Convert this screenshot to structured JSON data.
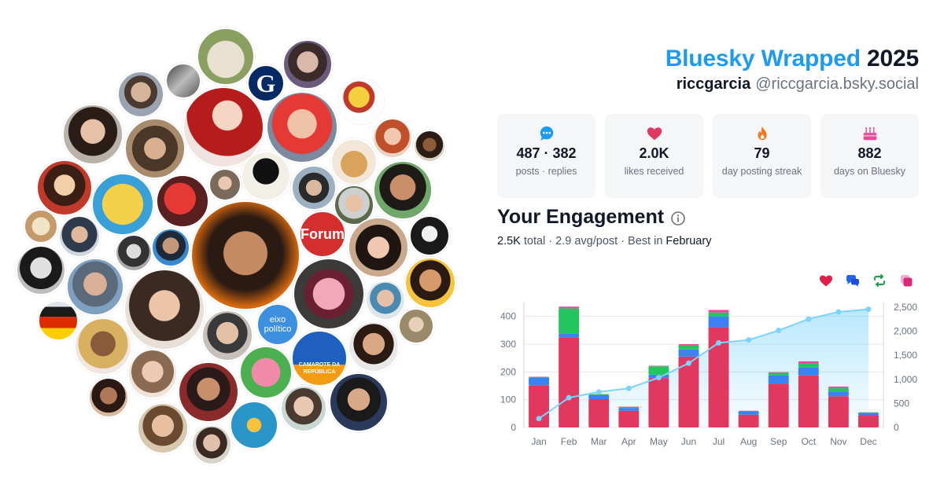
{
  "header": {
    "brand": "Bluesky Wrapped",
    "year": "2025",
    "username": "riccgarcia",
    "handle": "@riccgarcia.bsky.social"
  },
  "stats": [
    {
      "icon": "chat-bubble-icon",
      "value": "487 · 382",
      "label": "posts · replies"
    },
    {
      "icon": "heart-icon",
      "value": "2.0K",
      "label": "likes received"
    },
    {
      "icon": "fire-icon",
      "value": "79",
      "label": "day posting streak"
    },
    {
      "icon": "cake-icon",
      "value": "882",
      "label": "days on Bluesky"
    }
  ],
  "engagement": {
    "title": "Your Engagement",
    "total": "2.5K",
    "total_suffix": " total · ",
    "avg": "2.9 avg/post",
    "best_prefix": " · Best in ",
    "best_month": "February"
  },
  "legend": [
    {
      "icon": "heart-icon",
      "color": "#e11d48"
    },
    {
      "icon": "replies-icon",
      "color": "#2563eb"
    },
    {
      "icon": "repost-icon",
      "color": "#16a34a"
    },
    {
      "icon": "quote-icon",
      "color": "#db2777"
    }
  ],
  "avatar_logos": {
    "guardian": "G",
    "forum": "Forum",
    "eixo": "eixo político",
    "camarote": "CAMAROTE DA REPÚBLICA"
  },
  "chart_data": {
    "type": "bar",
    "categories": [
      "Jan",
      "Feb",
      "Mar",
      "Apr",
      "May",
      "Jun",
      "Jul",
      "Aug",
      "Sep",
      "Oct",
      "Nov",
      "Dec"
    ],
    "series": [
      {
        "name": "Likes",
        "color": "#e0385e",
        "values": [
          152,
          325,
          102,
          60,
          178,
          255,
          362,
          46,
          158,
          188,
          112,
          44
        ]
      },
      {
        "name": "Replies",
        "color": "#3b82f6",
        "values": [
          28,
          14,
          14,
          10,
          12,
          26,
          38,
          12,
          30,
          28,
          18,
          8
        ]
      },
      {
        "name": "Reposts",
        "color": "#22c55e",
        "values": [
          2,
          90,
          3,
          4,
          30,
          16,
          14,
          1,
          9,
          14,
          12,
          2
        ]
      },
      {
        "name": "Quotes",
        "color": "#ec4899",
        "values": [
          1,
          6,
          1,
          1,
          2,
          3,
          9,
          1,
          2,
          8,
          5,
          1
        ]
      }
    ],
    "cumulative": [
      183,
      618,
      738,
      813,
      1035,
      1335,
      1758,
      1818,
      2017,
      2255,
      2402,
      2457
    ],
    "y_left": {
      "range": [
        0,
        450
      ],
      "ticks": [
        0,
        100,
        200,
        300,
        400
      ]
    },
    "y_right": {
      "range": [
        0,
        2500
      ],
      "ticks": [
        0,
        500,
        1000,
        1500,
        2000,
        2500
      ],
      "tick_labels": [
        "0",
        "500",
        "1,000",
        "1,500",
        "2,000",
        "2,500"
      ]
    },
    "grid": true
  }
}
